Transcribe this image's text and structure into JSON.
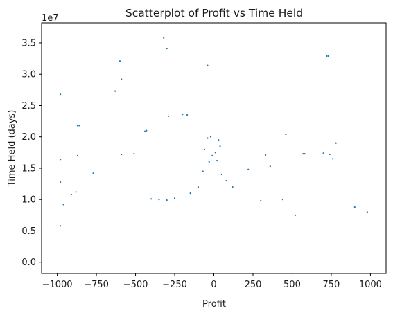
{
  "chart_data": {
    "type": "scatter",
    "title": "Scatterplot of Profit vs Time Held",
    "xlabel": "Profit",
    "ylabel": "Time Held (days)",
    "y_exponent_label": "1e7",
    "xlim": [
      -1100,
      1100
    ],
    "ylim": [
      -0.18,
      3.82
    ],
    "x_ticks": [
      -1000,
      -750,
      -500,
      -250,
      0,
      250,
      500,
      750,
      1000
    ],
    "x_tick_labels": [
      "−1000",
      "−750",
      "−500",
      "−250",
      "0",
      "250",
      "500",
      "750",
      "1000"
    ],
    "y_ticks": [
      0,
      0.5,
      1.0,
      1.5,
      2.0,
      2.5,
      3.0,
      3.5
    ],
    "y_tick_labels": [
      "0.0",
      "0.5",
      "1.0",
      "1.5",
      "2.0",
      "2.5",
      "3.0",
      "3.5"
    ],
    "y_scale_note": "values in units of 1e7",
    "grid": false,
    "marker_color": "#1f77b4",
    "series": [
      {
        "values": [
          {
            "x": -320,
            "y": 3.58
          },
          {
            "x": -300,
            "y": 3.41
          },
          {
            "x": -600,
            "y": 3.21
          },
          {
            "x": -40,
            "y": 3.14
          },
          {
            "x": 720,
            "y": 3.29
          },
          {
            "x": 730,
            "y": 3.29
          },
          {
            "x": -590,
            "y": 2.92
          },
          {
            "x": -980,
            "y": 2.68
          },
          {
            "x": -630,
            "y": 2.73
          },
          {
            "x": -290,
            "y": 2.33
          },
          {
            "x": -200,
            "y": 2.36
          },
          {
            "x": -170,
            "y": 2.35
          },
          {
            "x": -870,
            "y": 2.18
          },
          {
            "x": -860,
            "y": 2.18
          },
          {
            "x": -440,
            "y": 2.09
          },
          {
            "x": -430,
            "y": 2.1
          },
          {
            "x": 460,
            "y": 2.04
          },
          {
            "x": 780,
            "y": 1.9
          },
          {
            "x": -980,
            "y": 1.64
          },
          {
            "x": -870,
            "y": 1.7
          },
          {
            "x": -590,
            "y": 1.72
          },
          {
            "x": -510,
            "y": 1.73
          },
          {
            "x": -40,
            "y": 1.98
          },
          {
            "x": -20,
            "y": 2.0
          },
          {
            "x": 30,
            "y": 1.95
          },
          {
            "x": 40,
            "y": 1.85
          },
          {
            "x": -60,
            "y": 1.8
          },
          {
            "x": 10,
            "y": 1.75
          },
          {
            "x": 700,
            "y": 1.74
          },
          {
            "x": 740,
            "y": 1.72
          },
          {
            "x": 760,
            "y": 1.65
          },
          {
            "x": 570,
            "y": 1.73
          },
          {
            "x": 580,
            "y": 1.73
          },
          {
            "x": 330,
            "y": 1.71
          },
          {
            "x": 360,
            "y": 1.53
          },
          {
            "x": 220,
            "y": 1.48
          },
          {
            "x": -980,
            "y": 1.28
          },
          {
            "x": -770,
            "y": 1.42
          },
          {
            "x": -880,
            "y": 1.12
          },
          {
            "x": -910,
            "y": 1.08
          },
          {
            "x": -960,
            "y": 0.92
          },
          {
            "x": -980,
            "y": 0.58
          },
          {
            "x": 900,
            "y": 0.88
          },
          {
            "x": 980,
            "y": 0.8
          },
          {
            "x": 520,
            "y": 0.75
          },
          {
            "x": 440,
            "y": 1.0
          },
          {
            "x": 300,
            "y": 0.98
          },
          {
            "x": -400,
            "y": 1.01
          },
          {
            "x": -350,
            "y": 1.0
          },
          {
            "x": -300,
            "y": 0.99
          },
          {
            "x": -250,
            "y": 1.02
          },
          {
            "x": -150,
            "y": 1.1
          },
          {
            "x": -100,
            "y": 1.2
          },
          {
            "x": -70,
            "y": 1.45
          },
          {
            "x": 50,
            "y": 1.4
          },
          {
            "x": 80,
            "y": 1.3
          },
          {
            "x": 120,
            "y": 1.2
          },
          {
            "x": -30,
            "y": 1.6
          },
          {
            "x": 20,
            "y": 1.62
          },
          {
            "x": -10,
            "y": 1.7
          }
        ]
      }
    ]
  }
}
